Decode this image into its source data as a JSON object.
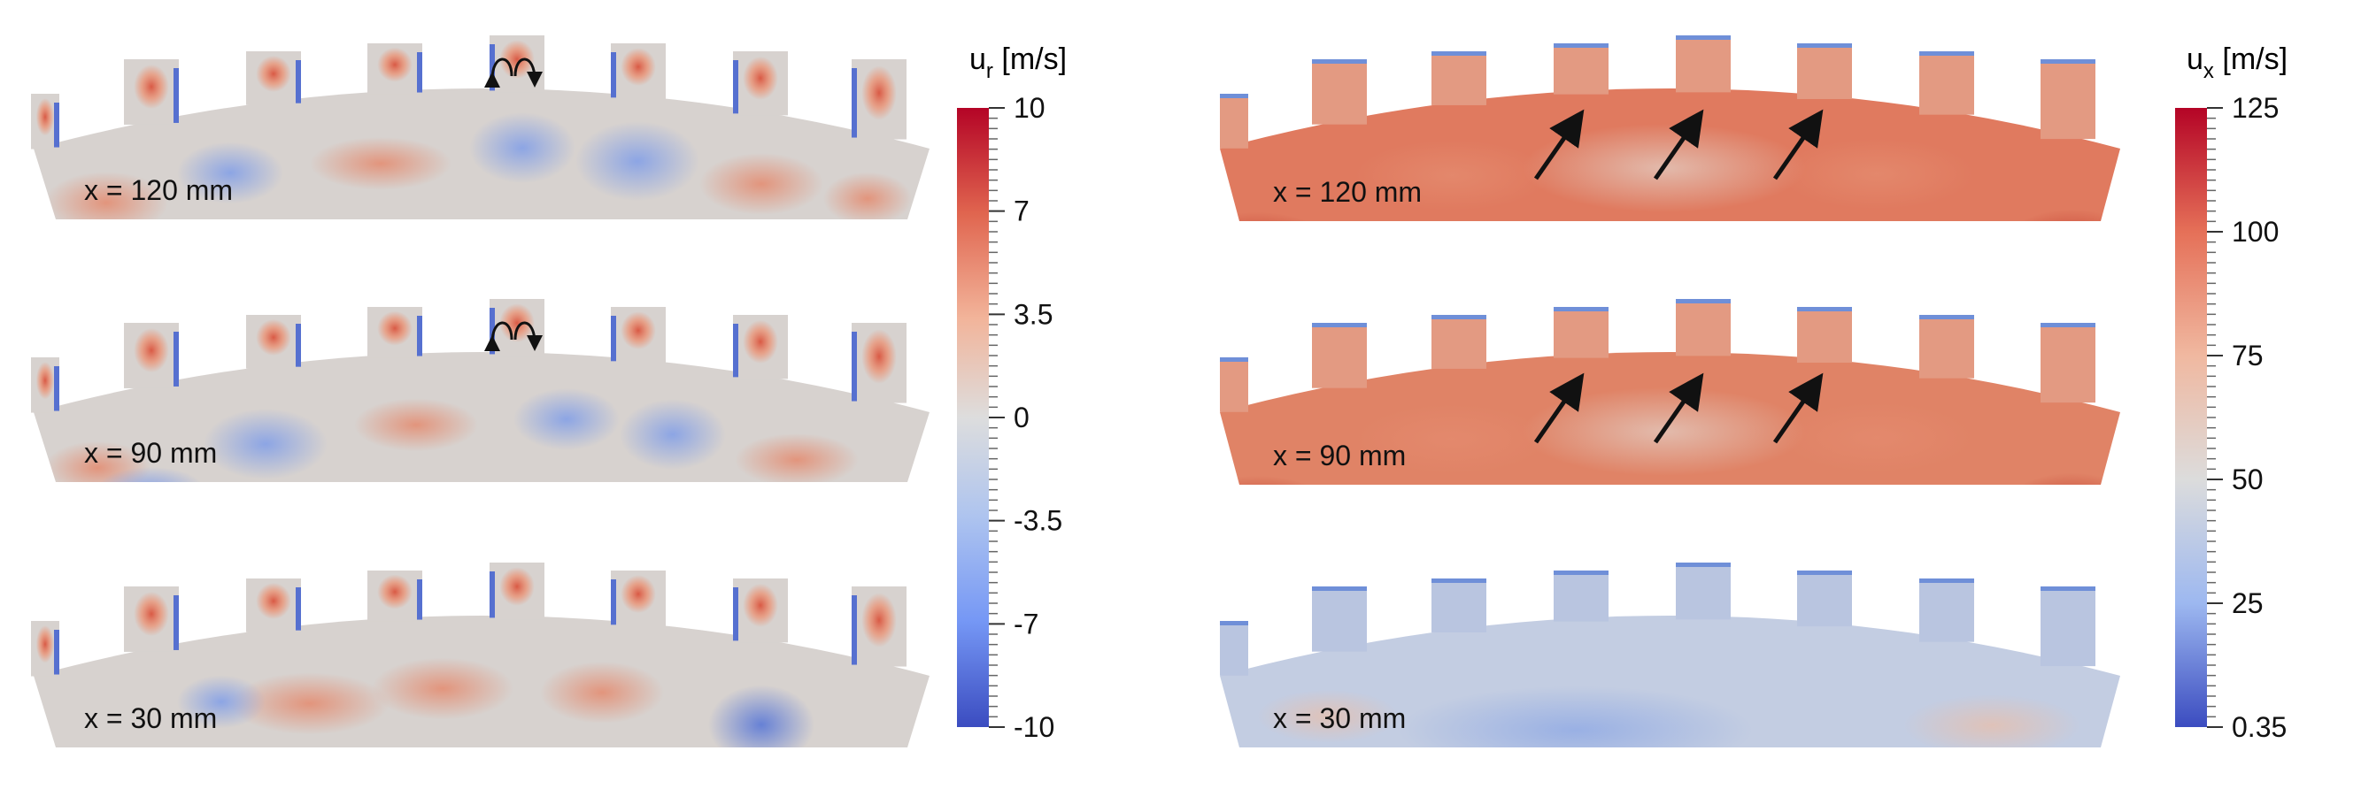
{
  "left_panel": {
    "colorbar": {
      "title_main": "u",
      "title_sub": "r",
      "title_unit": " [m/s]",
      "ticks": [
        "10",
        "7",
        "3.5",
        "0",
        "-3.5",
        "-7",
        "-10"
      ],
      "range": [
        -10,
        10
      ]
    },
    "slices": [
      {
        "label": "x = 120 mm",
        "vortex_marker": true
      },
      {
        "label": "x = 90 mm",
        "vortex_marker": true
      },
      {
        "label": "x = 30 mm",
        "vortex_marker": false
      }
    ]
  },
  "right_panel": {
    "colorbar": {
      "title_main": "u",
      "title_sub": "x",
      "title_unit": " [m/s]",
      "ticks": [
        "125",
        "100",
        "75",
        "50",
        "25",
        "0.35"
      ],
      "range": [
        0.35,
        125
      ]
    },
    "slices": [
      {
        "label": "x = 120 mm",
        "flow_arrows": 3
      },
      {
        "label": "x = 90 mm",
        "flow_arrows": 3
      },
      {
        "label": "x = 30 mm",
        "flow_arrows": 0
      }
    ]
  },
  "colors": {
    "colormap": [
      "#3b4cc0",
      "#7b9ff9",
      "#c0d4f5",
      "#dddddd",
      "#f2cbb7",
      "#ee8468",
      "#b40426"
    ],
    "edge_blue": "#3f5fd0"
  }
}
